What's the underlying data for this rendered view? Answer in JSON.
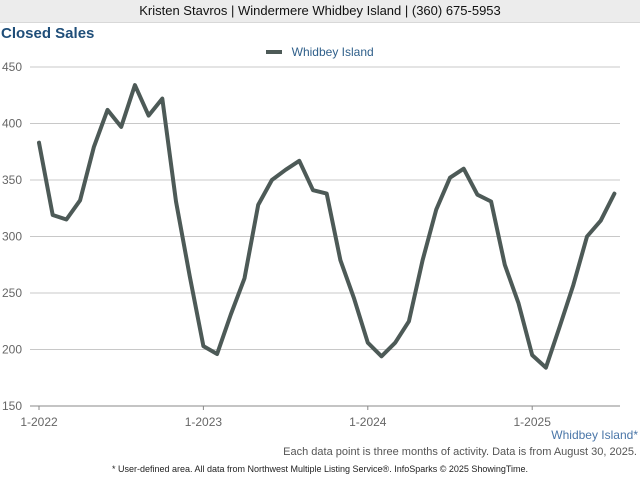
{
  "header": {
    "text": "Kristen Stavros | Windermere Whidbey Island | (360) 675-5953"
  },
  "chart_data": {
    "type": "line",
    "title": "Closed Sales",
    "xlabel": "",
    "ylabel": "",
    "ylim": [
      150,
      450
    ],
    "yticks": [
      150,
      200,
      250,
      300,
      350,
      400,
      450
    ],
    "x_tick_labels": [
      "1-2022",
      "1-2023",
      "1-2024",
      "1-2025"
    ],
    "grid": true,
    "legend_position": "top-center",
    "series": [
      {
        "name": "Whidbey Island",
        "color": "#4d5a57",
        "x": [
          "1-2022",
          "2-2022",
          "3-2022",
          "4-2022",
          "5-2022",
          "6-2022",
          "7-2022",
          "8-2022",
          "9-2022",
          "10-2022",
          "11-2022",
          "12-2022",
          "1-2023",
          "2-2023",
          "3-2023",
          "4-2023",
          "5-2023",
          "6-2023",
          "7-2023",
          "8-2023",
          "9-2023",
          "10-2023",
          "11-2023",
          "12-2023",
          "1-2024",
          "2-2024",
          "3-2024",
          "4-2024",
          "5-2024",
          "6-2024",
          "7-2024",
          "8-2024",
          "9-2024",
          "10-2024",
          "11-2024",
          "12-2024",
          "1-2025",
          "2-2025",
          "3-2025",
          "4-2025",
          "5-2025",
          "6-2025",
          "7-2025"
        ],
        "values": [
          383,
          319,
          315,
          332,
          379,
          412,
          397,
          434,
          407,
          422,
          331,
          265,
          203,
          196,
          231,
          263,
          328,
          350,
          359,
          367,
          341,
          338,
          279,
          245,
          206,
          194,
          206,
          225,
          279,
          324,
          352,
          360,
          337,
          331,
          275,
          241,
          195,
          184,
          220,
          257,
          300,
          314,
          338
        ]
      }
    ],
    "region_label": "Whidbey Island*",
    "note": "Each data point is three months of activity. Data is from August 30, 2025."
  },
  "footer": {
    "credit": "* User-defined area. All data from Northwest Multiple Listing Service®. InfoSparks © 2025 ShowingTime."
  }
}
